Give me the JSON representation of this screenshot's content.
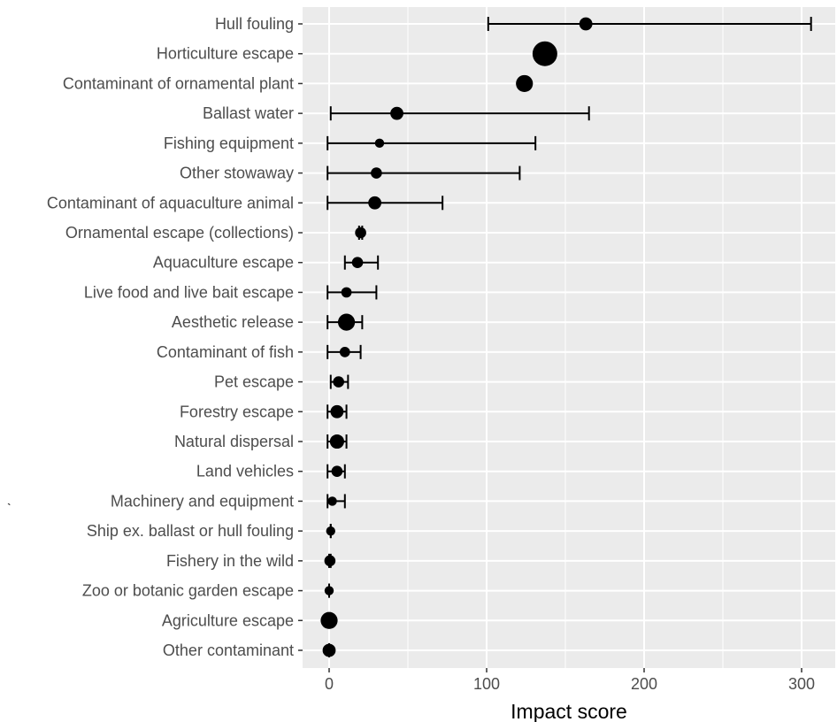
{
  "chart_data": {
    "type": "dot-errorbar",
    "categories": [
      "Hull fouling",
      "Horticulture escape",
      "Contaminant of ornamental plant",
      "Ballast water",
      "Fishing equipment",
      "Other stowaway ",
      "Contaminant of aquaculture animal",
      "Ornamental escape (collections)",
      "Aquaculture escape",
      "Live food and live bait escape",
      "Aesthetic release",
      "Contaminant of fish",
      "Pet escape",
      "Forestry escape",
      "Natural dispersal",
      "Land vehicles",
      "Machinery and equipment",
      "Ship ex. ballast or hull fouling",
      "Fishery in the wild",
      "Zoo or botanic garden escape",
      "Agriculture escape",
      "Other contaminant"
    ],
    "values": [
      163,
      137,
      124,
      43,
      32,
      30,
      29,
      20,
      18,
      11,
      11,
      10,
      6,
      5,
      5,
      5,
      2,
      1,
      0.5,
      0,
      0,
      0
    ],
    "lower": [
      101,
      137,
      123,
      1,
      -1,
      -1,
      -1,
      19,
      10,
      -1,
      -1,
      -1,
      1,
      -1,
      -1,
      -1,
      -1,
      1,
      0,
      0,
      0,
      0
    ],
    "upper": [
      306,
      137,
      125,
      165,
      131,
      121,
      72,
      21,
      31,
      30,
      21,
      20,
      12,
      11,
      11,
      10,
      10,
      1,
      1,
      0,
      0,
      0
    ],
    "point_size": [
      2,
      5,
      3,
      2,
      1,
      1.5,
      2,
      1.5,
      1.5,
      1.3,
      3,
      1.3,
      1.5,
      2,
      2.3,
      1.5,
      1,
      1,
      1.5,
      1,
      3,
      2
    ],
    "xlabel": "Impact score",
    "ylabel": "",
    "xlim": [
      -16,
      325
    ],
    "x_ticks": [
      0,
      100,
      200,
      300
    ],
    "x_tick_labels": [
      "0",
      "100",
      "200",
      "300"
    ],
    "grid": true,
    "panel_background": "#ebebeb",
    "grid_color": "#ffffff",
    "point_color": "#000000"
  },
  "stray_mark": "`"
}
